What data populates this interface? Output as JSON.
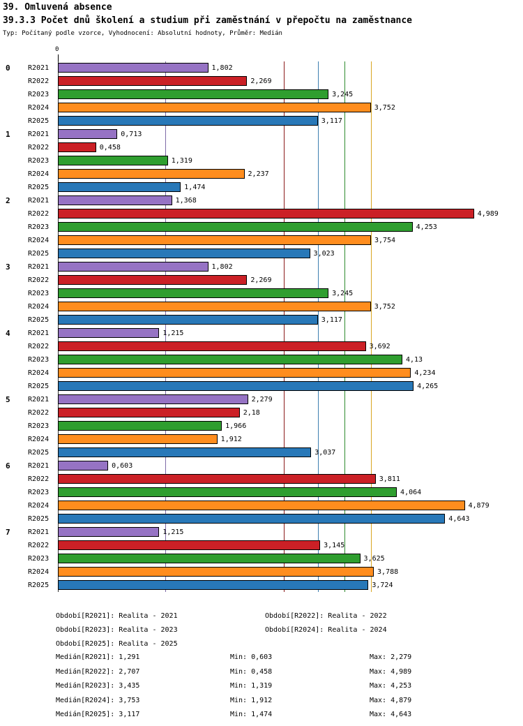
{
  "title1": "39. Omluvená absence",
  "title2": "39.3.3 Počet dnů školení a studium při zaměstnání v přepočtu na zaměstnance",
  "subtitle": "Typ: Počítaný podle vzorce, Vyhodnocení: Absolutní hodnoty, Průměr: Medián",
  "axis": {
    "zero_label": "0"
  },
  "chart_data": {
    "type": "bar",
    "orientation": "horizontal",
    "xlim": [
      0,
      5.2
    ],
    "grid": false,
    "series": [
      "R2021",
      "R2022",
      "R2023",
      "R2024",
      "R2025"
    ],
    "series_colors": {
      "R2021": "#9673C4",
      "R2022": "#CB2026",
      "R2023": "#2F9E2F",
      "R2024": "#FF8D1E",
      "R2025": "#2878B8"
    },
    "median_line_colors": {
      "R2021": "#7E6AA8",
      "R2022": "#8B1A1A",
      "R2023": "#2E8B2E",
      "R2024": "#D9A520",
      "R2025": "#3C7EB0"
    },
    "medians": {
      "R2021": 1.291,
      "R2022": 2.707,
      "R2023": 3.435,
      "R2024": 3.753,
      "R2025": 3.117
    },
    "groups": [
      {
        "label": "0",
        "bars": [
          {
            "series": "R2021",
            "value": 1.802,
            "label": "1,802"
          },
          {
            "series": "R2022",
            "value": 2.269,
            "label": "2,269"
          },
          {
            "series": "R2023",
            "value": 3.245,
            "label": "3,245"
          },
          {
            "series": "R2024",
            "value": 3.752,
            "label": "3,752"
          },
          {
            "series": "R2025",
            "value": 3.117,
            "label": "3,117"
          }
        ]
      },
      {
        "label": "1",
        "bars": [
          {
            "series": "R2021",
            "value": 0.713,
            "label": "0,713"
          },
          {
            "series": "R2022",
            "value": 0.458,
            "label": "0,458"
          },
          {
            "series": "R2023",
            "value": 1.319,
            "label": "1,319"
          },
          {
            "series": "R2024",
            "value": 2.237,
            "label": "2,237"
          },
          {
            "series": "R2025",
            "value": 1.474,
            "label": "1,474"
          }
        ]
      },
      {
        "label": "2",
        "bars": [
          {
            "series": "R2021",
            "value": 1.368,
            "label": "1,368"
          },
          {
            "series": "R2022",
            "value": 4.989,
            "label": "4,989"
          },
          {
            "series": "R2023",
            "value": 4.253,
            "label": "4,253"
          },
          {
            "series": "R2024",
            "value": 3.754,
            "label": "3,754"
          },
          {
            "series": "R2025",
            "value": 3.023,
            "label": "3,023"
          }
        ]
      },
      {
        "label": "3",
        "bars": [
          {
            "series": "R2021",
            "value": 1.802,
            "label": "1,802"
          },
          {
            "series": "R2022",
            "value": 2.269,
            "label": "2,269"
          },
          {
            "series": "R2023",
            "value": 3.245,
            "label": "3,245"
          },
          {
            "series": "R2024",
            "value": 3.752,
            "label": "3,752"
          },
          {
            "series": "R2025",
            "value": 3.117,
            "label": "3,117"
          }
        ]
      },
      {
        "label": "4",
        "bars": [
          {
            "series": "R2021",
            "value": 1.215,
            "label": "1,215"
          },
          {
            "series": "R2022",
            "value": 3.692,
            "label": "3,692"
          },
          {
            "series": "R2023",
            "value": 4.13,
            "label": "4,13"
          },
          {
            "series": "R2024",
            "value": 4.234,
            "label": "4,234"
          },
          {
            "series": "R2025",
            "value": 4.265,
            "label": "4,265"
          }
        ]
      },
      {
        "label": "5",
        "bars": [
          {
            "series": "R2021",
            "value": 2.279,
            "label": "2,279"
          },
          {
            "series": "R2022",
            "value": 2.18,
            "label": "2,18"
          },
          {
            "series": "R2023",
            "value": 1.966,
            "label": "1,966"
          },
          {
            "series": "R2024",
            "value": 1.912,
            "label": "1,912"
          },
          {
            "series": "R2025",
            "value": 3.037,
            "label": "3,037"
          }
        ]
      },
      {
        "label": "6",
        "bars": [
          {
            "series": "R2021",
            "value": 0.603,
            "label": "0,603"
          },
          {
            "series": "R2022",
            "value": 3.811,
            "label": "3,811"
          },
          {
            "series": "R2023",
            "value": 4.064,
            "label": "4,064"
          },
          {
            "series": "R2024",
            "value": 4.879,
            "label": "4,879"
          },
          {
            "series": "R2025",
            "value": 4.643,
            "label": "4,643"
          }
        ]
      },
      {
        "label": "7",
        "bars": [
          {
            "series": "R2021",
            "value": 1.215,
            "label": "1,215"
          },
          {
            "series": "R2022",
            "value": 3.145,
            "label": "3,145"
          },
          {
            "series": "R2023",
            "value": 3.625,
            "label": "3,625"
          },
          {
            "series": "R2024",
            "value": 3.788,
            "label": "3,788"
          },
          {
            "series": "R2025",
            "value": 3.724,
            "label": "3,724"
          }
        ]
      }
    ]
  },
  "legend": [
    "Období[R2021]: Realita - 2021",
    "Období[R2022]: Realita - 2022",
    "Období[R2023]: Realita - 2023",
    "Období[R2024]: Realita - 2024",
    "Období[R2025]: Realita - 2025"
  ],
  "stats": [
    {
      "median": "Medián[R2021]: 1,291",
      "min": "Min: 0,603",
      "max": "Max: 2,279"
    },
    {
      "median": "Medián[R2022]: 2,707",
      "min": "Min: 0,458",
      "max": "Max: 4,989"
    },
    {
      "median": "Medián[R2023]: 3,435",
      "min": "Min: 1,319",
      "max": "Max: 4,253"
    },
    {
      "median": "Medián[R2024]: 3,753",
      "min": "Min: 1,912",
      "max": "Max: 4,879"
    },
    {
      "median": "Medián[R2025]: 3,117",
      "min": "Min: 1,474",
      "max": "Max: 4,643"
    }
  ]
}
